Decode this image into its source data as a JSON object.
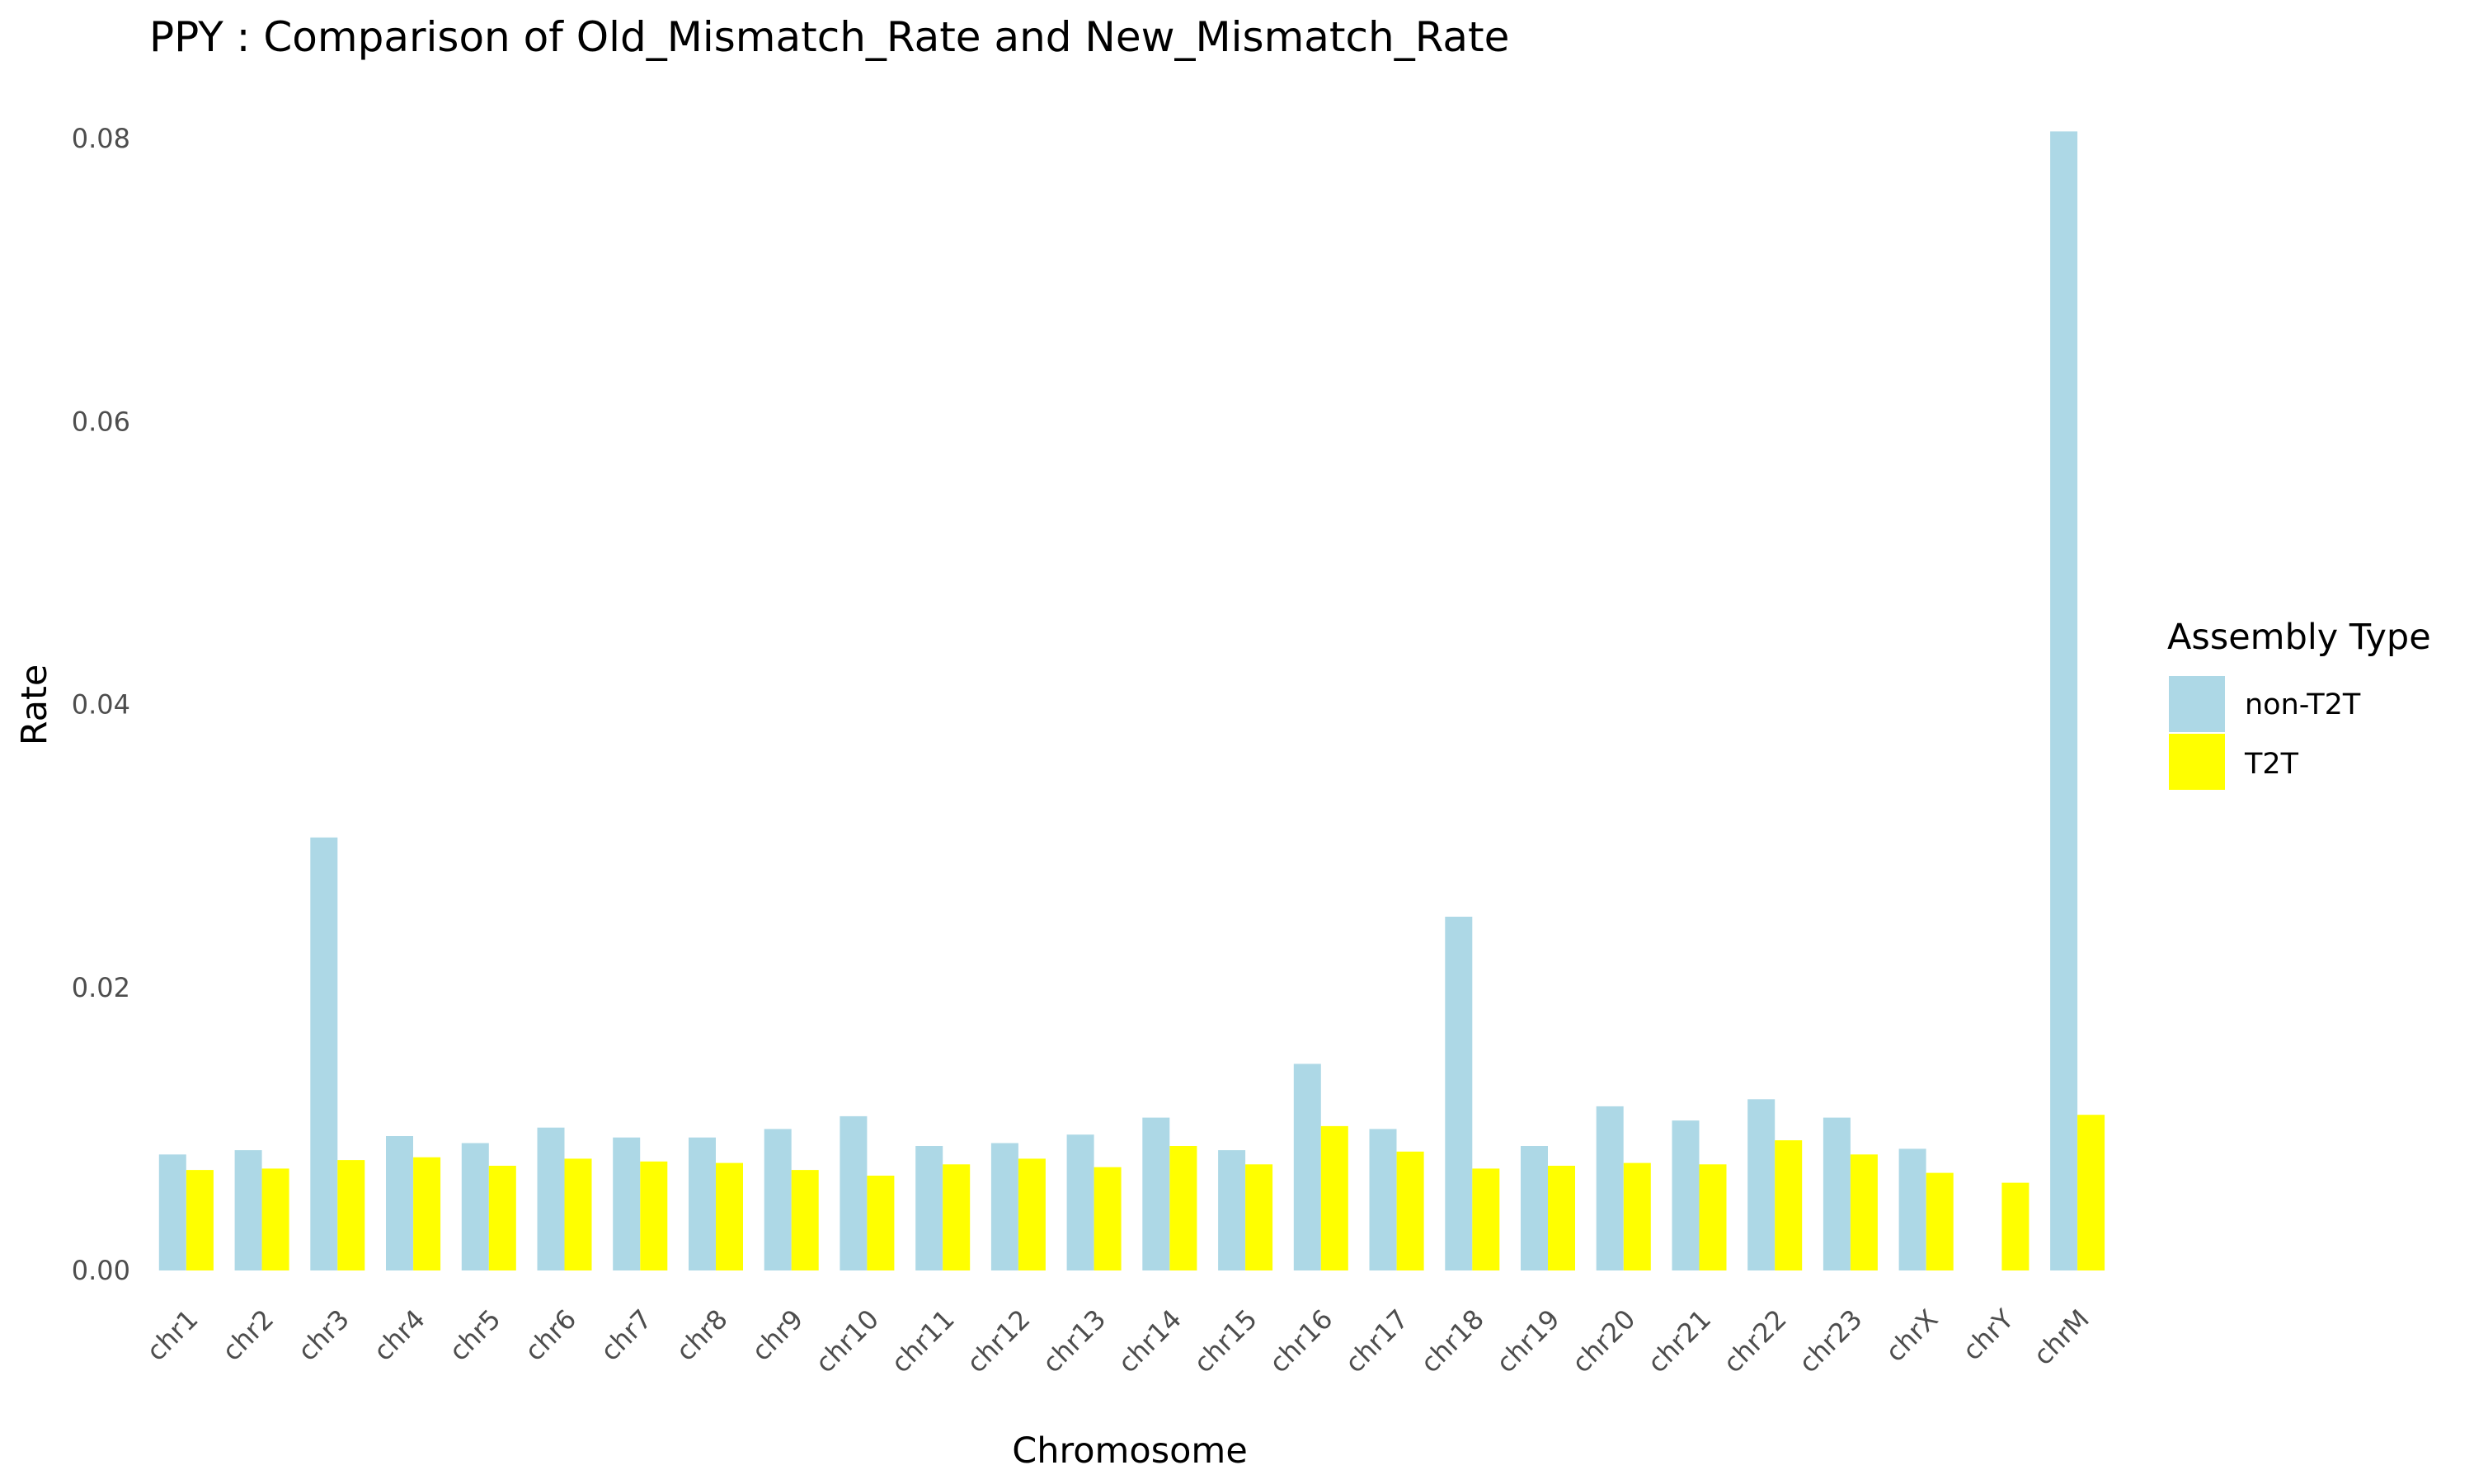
{
  "chart_data": {
    "type": "bar",
    "title": "PPY : Comparison of Old_Mismatch_Rate and New_Mismatch_Rate",
    "xlabel": "Chromosome",
    "ylabel": "Rate",
    "categories": [
      "chr1",
      "chr2",
      "chr3",
      "chr4",
      "chr5",
      "chr6",
      "chr7",
      "chr8",
      "chr9",
      "chr10",
      "chr11",
      "chr12",
      "chr13",
      "chr14",
      "chr15",
      "chr16",
      "chr17",
      "chr18",
      "chr19",
      "chr20",
      "chr21",
      "chr22",
      "chr23",
      "chrX",
      "chrY",
      "chrM"
    ],
    "series": [
      {
        "name": "non-T2T",
        "color": "#add8e6",
        "values": [
          0.0082,
          0.0085,
          0.0306,
          0.0095,
          0.009,
          0.0101,
          0.0094,
          0.0094,
          0.01,
          0.0109,
          0.0088,
          0.009,
          0.0096,
          0.0108,
          0.0085,
          0.0146,
          0.01,
          0.025,
          0.0088,
          0.0116,
          0.0106,
          0.0121,
          0.0108,
          0.0086,
          null,
          0.0805
        ]
      },
      {
        "name": "T2T",
        "color": "#ffff00",
        "values": [
          0.0071,
          0.0072,
          0.0078,
          0.008,
          0.0074,
          0.0079,
          0.0077,
          0.0076,
          0.0071,
          0.0067,
          0.0075,
          0.0079,
          0.0073,
          0.0088,
          0.0075,
          0.0102,
          0.0084,
          0.0072,
          0.0074,
          0.0076,
          0.0075,
          0.0092,
          0.0082,
          0.0069,
          0.0062,
          0.011
        ]
      }
    ],
    "ylim": [
      0,
      0.08
    ],
    "yticks": [
      "0.00",
      "0.02",
      "0.04",
      "0.06",
      "0.08"
    ],
    "grid": false,
    "legend": {
      "title": "Assembly Type",
      "position": "right",
      "entries": [
        "non-T2T",
        "T2T"
      ]
    }
  }
}
